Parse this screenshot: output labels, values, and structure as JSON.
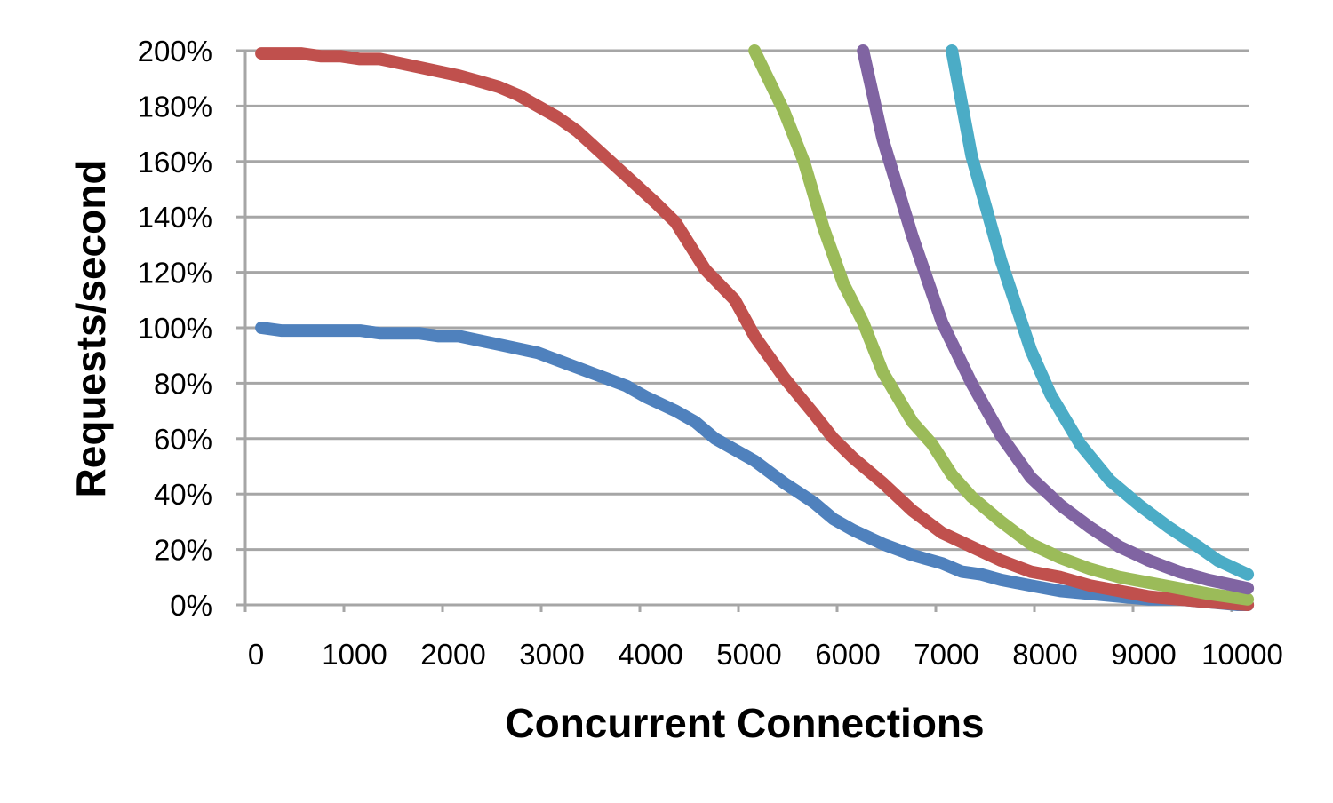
{
  "chart_data": {
    "type": "line",
    "title": "",
    "xlabel": "Concurrent Connections",
    "ylabel": "Requests/second",
    "xlim": [
      0,
      10200
    ],
    "ylim": [
      0,
      200
    ],
    "x_ticks": [
      0,
      1000,
      2000,
      3000,
      4000,
      5000,
      6000,
      7000,
      8000,
      9000,
      10000
    ],
    "x_tick_labels": [
      "0",
      "1000",
      "2000",
      "3000",
      "4000",
      "5000",
      "6000",
      "7000",
      "8000",
      "9000",
      "10000"
    ],
    "y_ticks": [
      0,
      20,
      40,
      60,
      80,
      100,
      120,
      140,
      160,
      180,
      200
    ],
    "y_tick_labels": [
      "0%",
      "20%",
      "40%",
      "60%",
      "80%",
      "100%",
      "120%",
      "140%",
      "160%",
      "180%",
      "200%"
    ],
    "grid": true,
    "legend": "none",
    "series": [
      {
        "color": "#4f81bd",
        "x": [
          100,
          300,
          1100,
          1300,
          1700,
          1900,
          2100,
          2500,
          2900,
          3200,
          3500,
          3800,
          4000,
          4300,
          4500,
          4700,
          5100,
          5400,
          5700,
          5900,
          6100,
          6400,
          6700,
          7000,
          7200,
          7400,
          7600,
          7900,
          8200,
          8500,
          8800,
          9100,
          9400,
          9700,
          10000,
          10100
        ],
        "y": [
          100,
          99,
          99,
          98,
          98,
          97,
          97,
          94,
          91,
          87,
          83,
          79,
          75,
          70,
          66,
          60,
          52,
          44,
          37,
          31,
          27,
          22,
          18,
          15,
          12,
          11,
          9,
          7,
          5,
          4,
          3,
          2,
          2,
          1,
          0,
          0
        ]
      },
      {
        "color": "#c0504d",
        "x": [
          100,
          500,
          700,
          900,
          1100,
          1300,
          1700,
          2100,
          2300,
          2500,
          2700,
          2900,
          3100,
          3300,
          3700,
          4100,
          4300,
          4600,
          4900,
          5100,
          5400,
          5700,
          5900,
          6100,
          6400,
          6700,
          7000,
          7300,
          7600,
          7900,
          8200,
          8500,
          8800,
          9100,
          9400,
          9700,
          10100
        ],
        "y": [
          199,
          199,
          198,
          198,
          197,
          197,
          194,
          191,
          189,
          187,
          184,
          180,
          176,
          171,
          158,
          145,
          138,
          121,
          110,
          97,
          82,
          69,
          60,
          53,
          44,
          34,
          26,
          21,
          16,
          12,
          10,
          7,
          5,
          3,
          2,
          1,
          0
        ]
      },
      {
        "color": "#9bbb59",
        "x": [
          5100,
          5400,
          5600,
          5800,
          6000,
          6200,
          6400,
          6700,
          6900,
          7100,
          7300,
          7600,
          7900,
          8200,
          8500,
          8800,
          9100,
          9400,
          9700,
          10100
        ],
        "y": [
          200,
          178,
          160,
          136,
          116,
          102,
          84,
          66,
          58,
          47,
          39,
          30,
          22,
          17,
          13,
          10,
          8,
          6,
          4,
          2
        ]
      },
      {
        "color": "#8064a2",
        "x": [
          6200,
          6400,
          6700,
          7000,
          7300,
          7600,
          7900,
          8200,
          8500,
          8800,
          9100,
          9400,
          9700,
          10100
        ],
        "y": [
          200,
          168,
          133,
          102,
          80,
          61,
          46,
          36,
          28,
          21,
          16,
          12,
          9,
          6
        ]
      },
      {
        "color": "#4bacc6",
        "x": [
          7100,
          7300,
          7600,
          7900,
          8100,
          8400,
          8700,
          9000,
          9300,
          9600,
          9800,
          10100
        ],
        "y": [
          200,
          162,
          124,
          92,
          76,
          58,
          45,
          36,
          28,
          21,
          16,
          11
        ]
      }
    ]
  }
}
